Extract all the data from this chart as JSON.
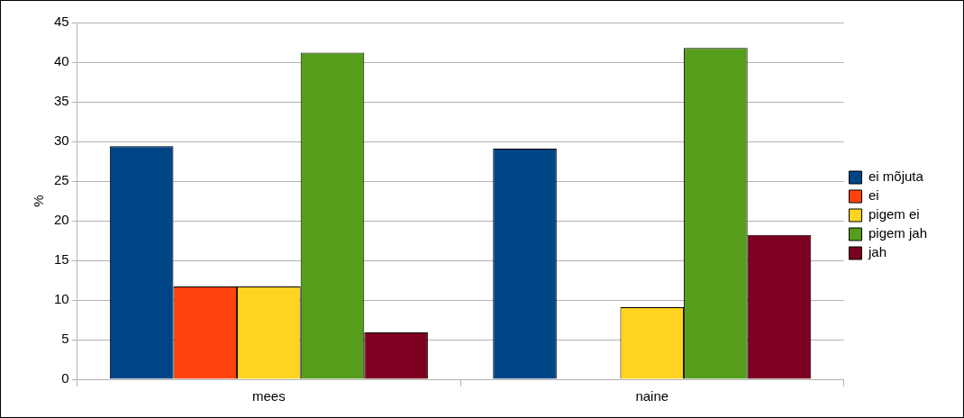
{
  "chart_data": {
    "type": "bar",
    "ylabel": "%",
    "categories": [
      "mees",
      "naine"
    ],
    "series": [
      {
        "name": "ei mõjuta",
        "color": "#004586",
        "values": [
          29.4,
          29.1
        ]
      },
      {
        "name": "ei",
        "color": "#ff420e",
        "values": [
          11.7,
          0
        ]
      },
      {
        "name": "pigem ei",
        "color": "#ffd320",
        "values": [
          11.7,
          9.1
        ]
      },
      {
        "name": "pigem jah",
        "color": "#579d1c",
        "values": [
          41.2,
          41.8
        ]
      },
      {
        "name": "jah",
        "color": "#7e0021",
        "values": [
          5.9,
          18.2
        ]
      }
    ],
    "ylim": [
      0,
      45
    ],
    "yticks": [
      0,
      5,
      10,
      15,
      20,
      25,
      30,
      35,
      40,
      45
    ],
    "grid": "y",
    "legend": "right"
  }
}
